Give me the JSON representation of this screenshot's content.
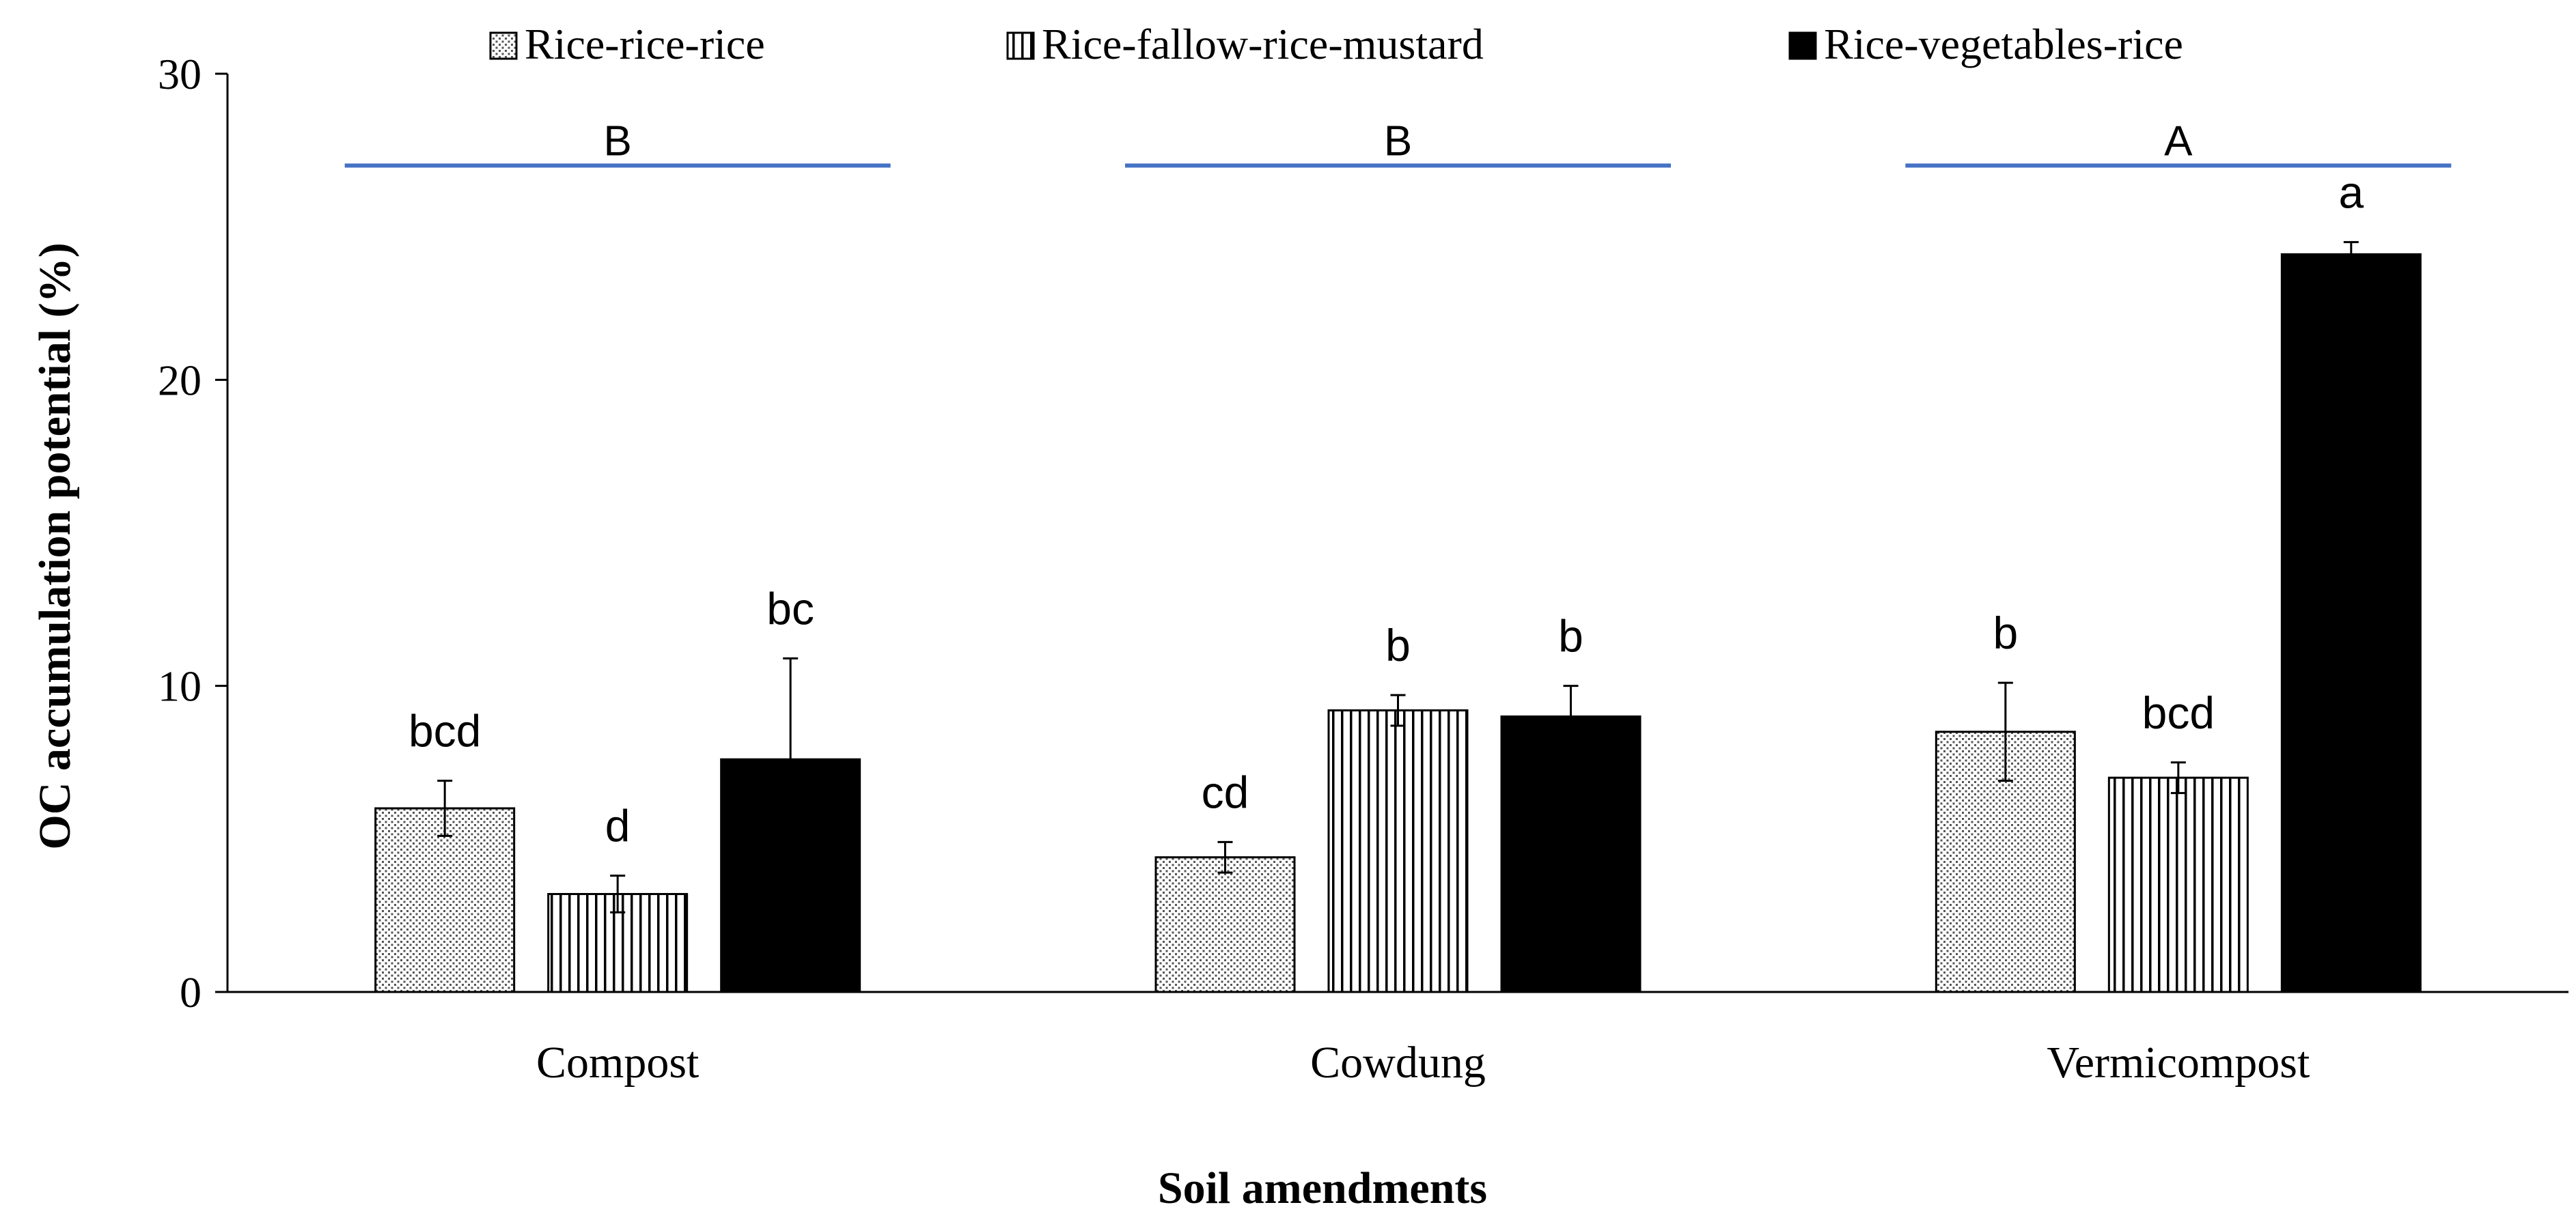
{
  "chart_data": {
    "type": "bar",
    "title": "",
    "xlabel": "Soil amendments",
    "ylabel": "OC accumulation potential (%)",
    "ylim": [
      0,
      30
    ],
    "yticks": [
      0,
      10,
      20,
      30
    ],
    "ytick_labels": [
      "0",
      "10",
      "20",
      "30"
    ],
    "categories": [
      "Compost",
      "Cowdung",
      "Vermicompost"
    ],
    "legend_position": "top",
    "series": [
      {
        "name": "Rice-rice-rice",
        "pattern": "dotted",
        "values": [
          6.0,
          4.4,
          8.5
        ],
        "errors": [
          0.9,
          0.5,
          1.6
        ],
        "letters": [
          "bcd",
          "cd",
          "b"
        ]
      },
      {
        "name": "Rice-fallow-rice-mustard",
        "pattern": "vertical-stripes",
        "values": [
          3.2,
          9.2,
          7.0
        ],
        "errors": [
          0.6,
          0.5,
          0.5
        ],
        "letters": [
          "d",
          "b",
          "bcd"
        ]
      },
      {
        "name": "Rice-vegetables-rice",
        "pattern": "solid",
        "values": [
          7.6,
          9.0,
          24.1
        ],
        "errors": [
          3.3,
          1.0,
          0.4
        ],
        "letters": [
          "bc",
          "b",
          "a"
        ]
      }
    ],
    "group_letters": [
      "B",
      "B",
      "A"
    ],
    "group_letter_line_value": 27.0,
    "group_line_color": "#4472C4",
    "bar_color": "#000000"
  }
}
